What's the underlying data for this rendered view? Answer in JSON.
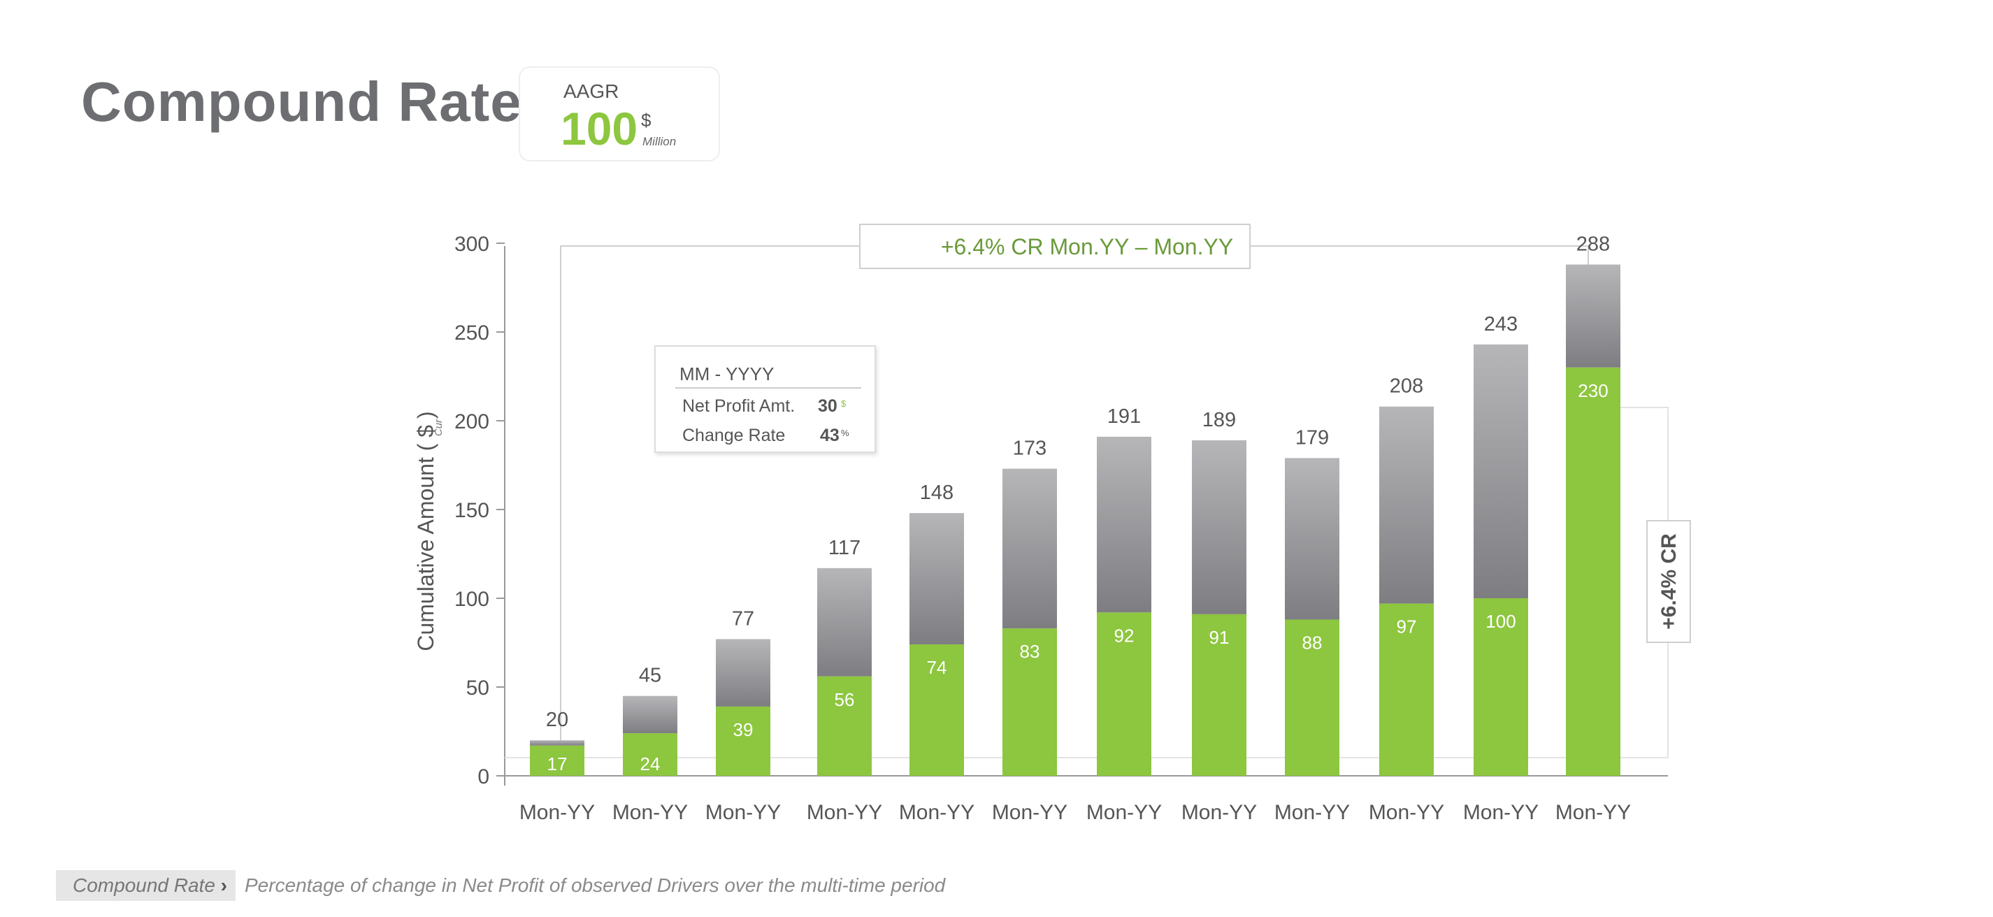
{
  "header": {
    "title": "Compound Rate"
  },
  "kpi": {
    "label": "AAGR",
    "value": "100",
    "currency": "$",
    "unit": "Million"
  },
  "colors": {
    "green": "#8dc63f",
    "gray_top": "#b3b3b6",
    "gray_bottom": "#808084",
    "annotation_green": "#6a9a3a",
    "axis": "#999999"
  },
  "chart_data": {
    "type": "bar",
    "stacked": true,
    "categories": [
      "Mon-YY",
      "Mon-YY",
      "Mon-YY",
      "Mon-YY",
      "Mon-YY",
      "Mon-YY",
      "Mon-YY",
      "Mon-YY",
      "Mon-YY",
      "Mon-YY",
      "Mon-YY",
      "Mon-YY"
    ],
    "totals": [
      20,
      45,
      77,
      117,
      148,
      173,
      191,
      189,
      179,
      208,
      243,
      288
    ],
    "series": [
      {
        "values": [
          17,
          24,
          39,
          56,
          74,
          83,
          92,
          91,
          88,
          97,
          100,
          230
        ]
      },
      {
        "values": [
          3,
          21,
          38,
          61,
          74,
          90,
          99,
          98,
          91,
          111,
          143,
          58
        ]
      }
    ],
    "yticks": [
      0,
      50,
      100,
      150,
      200,
      250,
      300
    ],
    "ylim": [
      0,
      300
    ],
    "ylabel": "Cumulative Amount ( $ )",
    "ylabel_sub": "Cur",
    "top_annotation": "+6.4% CR Mon.YY – Mon.YY",
    "side_annotation": "+6.4% CR",
    "tooltip": {
      "title": "MM - YYYY",
      "rows": [
        {
          "label": "Net Profit Amt.",
          "value": "30",
          "unit": "$"
        },
        {
          "label": "Change Rate",
          "value": "43",
          "unit": "%"
        }
      ]
    }
  },
  "footer": {
    "tag": "Compound Rate",
    "chevron": "›",
    "description": "Percentage of change in Net Profit of observed Drivers over the multi-time period"
  }
}
